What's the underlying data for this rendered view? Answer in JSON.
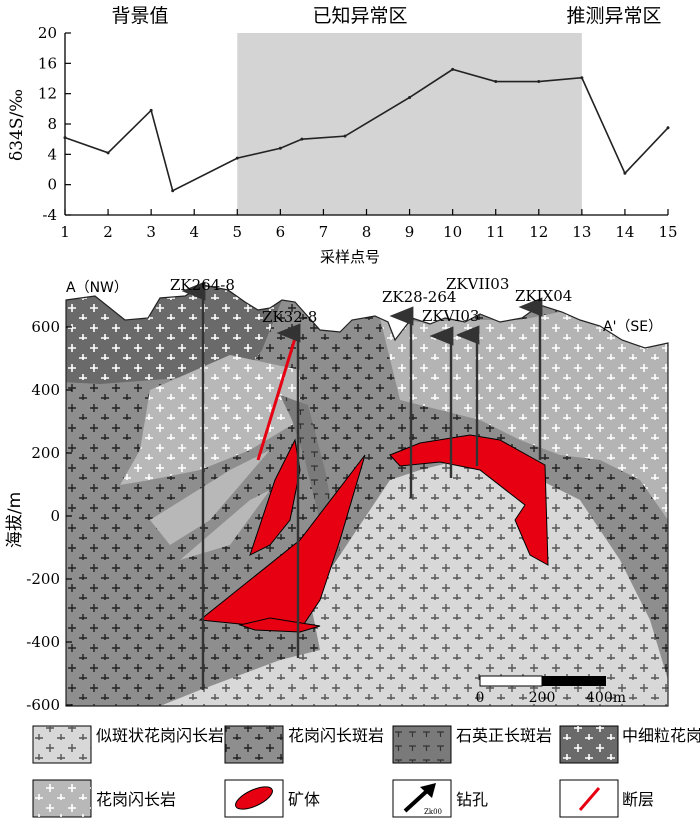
{
  "chart_data": {
    "type": "line",
    "zones": [
      {
        "label": "背景值",
        "x_from": 1,
        "x_to": 5,
        "shaded": false
      },
      {
        "label": "已知异常区",
        "x_from": 5,
        "x_to": 13,
        "shaded": true
      },
      {
        "label": "推测异常区",
        "x_from": 13,
        "x_to": 15,
        "shaded": false
      }
    ],
    "ylabel": "δ34S/‰",
    "xlabel": "采样点号",
    "ylim": [
      -4,
      20
    ],
    "y_ticks": [
      "-4",
      "0",
      "4",
      "8",
      "12",
      "16",
      "20"
    ],
    "x_ticks": [
      "1",
      "2",
      "3",
      "4",
      "5",
      "6",
      "7",
      "8",
      "9",
      "10",
      "11",
      "12",
      "13",
      "14",
      "15"
    ],
    "x": [
      1,
      2,
      3,
      3.5,
      5,
      6,
      6.5,
      7.5,
      9,
      10,
      11,
      12,
      13,
      14,
      15
    ],
    "values": [
      6.2,
      4.2,
      9.8,
      -0.8,
      3.5,
      4.8,
      6.0,
      6.4,
      11.5,
      15.2,
      13.6,
      13.6,
      14.1,
      1.5,
      7.5
    ],
    "grid": false
  },
  "section": {
    "endpoint_left": "A（NW）",
    "endpoint_right": "A'（SE）",
    "ylabel": "海拔/m",
    "y_ticks": [
      "600",
      "400",
      "200",
      "0",
      "-200",
      "-400",
      "-600"
    ],
    "drillholes": [
      "ZK264-8",
      "ZK32-8",
      "ZK28-264",
      "ZKVI03",
      "ZKVII03",
      "ZKIX04"
    ],
    "scale_labels": [
      "0",
      "200",
      "400m"
    ],
    "drill_icon_label": "Zk00"
  },
  "legend": [
    {
      "id": "porphyritic-granodiorite",
      "label": "似斑状花岗闪长岩"
    },
    {
      "id": "granodiorite-porphyry",
      "label": "花岗闪长斑岩"
    },
    {
      "id": "quartz-orthoclase-porphyry",
      "label": "石英正长斑岩"
    },
    {
      "id": "medium-fine-granite",
      "label": "中细粒花岗岩"
    },
    {
      "id": "granodiorite",
      "label": "花岗闪长岩"
    },
    {
      "id": "ore-body",
      "label": "矿体"
    },
    {
      "id": "drillhole",
      "label": "钻孔"
    },
    {
      "id": "fault",
      "label": "断层"
    }
  ],
  "colors": {
    "shade": "#d4d4d4",
    "ore": "#e60012",
    "fault": "#e60012",
    "dark_gray": "#6a6a6a",
    "mid_gray": "#8e8e8e",
    "light_gray": "#b8b8b8",
    "pale_gray": "#d8d8d8"
  }
}
